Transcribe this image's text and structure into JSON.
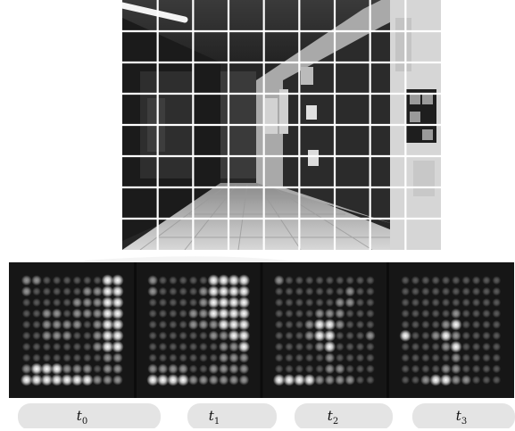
{
  "figure": {
    "time_labels": [
      {
        "symbol": "t",
        "subscript": "0"
      },
      {
        "symbol": "t",
        "subscript": "1"
      },
      {
        "symbol": "t",
        "subscript": "2"
      },
      {
        "symbol": "t",
        "subscript": "3"
      }
    ],
    "grid": {
      "rows": 8,
      "cols": 9
    },
    "colors": {
      "grid_line": "#ffffff",
      "heatmap_background": "#161616",
      "watermark": "#e6e6e6"
    }
  },
  "chart_data": {
    "type": "heatmap",
    "rows": 10,
    "cols": 10,
    "panels": [
      {
        "label": "t0",
        "values": [
          [
            2,
            2,
            1,
            1,
            1,
            1,
            1,
            1,
            3,
            3
          ],
          [
            2,
            1,
            1,
            1,
            1,
            1,
            2,
            2,
            3,
            3
          ],
          [
            1,
            1,
            1,
            1,
            1,
            2,
            2,
            2,
            3,
            3
          ],
          [
            1,
            1,
            2,
            2,
            1,
            2,
            2,
            2,
            3,
            3
          ],
          [
            1,
            1,
            2,
            2,
            2,
            2,
            1,
            2,
            3,
            3
          ],
          [
            1,
            1,
            2,
            2,
            2,
            1,
            1,
            2,
            3,
            3
          ],
          [
            1,
            1,
            1,
            1,
            1,
            1,
            1,
            2,
            3,
            3
          ],
          [
            1,
            1,
            1,
            1,
            1,
            1,
            1,
            1,
            2,
            2
          ],
          [
            2,
            3,
            3,
            3,
            2,
            2,
            2,
            1,
            2,
            2
          ],
          [
            3,
            3,
            3,
            3,
            3,
            3,
            3,
            2,
            2,
            2
          ]
        ]
      },
      {
        "label": "t1",
        "values": [
          [
            2,
            1,
            1,
            1,
            1,
            1,
            3,
            3,
            3,
            3
          ],
          [
            2,
            1,
            1,
            1,
            1,
            2,
            3,
            3,
            3,
            3
          ],
          [
            1,
            1,
            1,
            1,
            1,
            2,
            3,
            3,
            3,
            3
          ],
          [
            1,
            1,
            1,
            1,
            2,
            2,
            3,
            3,
            3,
            3
          ],
          [
            1,
            1,
            1,
            1,
            2,
            2,
            2,
            3,
            3,
            3
          ],
          [
            1,
            1,
            1,
            1,
            1,
            1,
            2,
            2,
            3,
            3
          ],
          [
            1,
            1,
            1,
            1,
            1,
            1,
            1,
            2,
            2,
            3
          ],
          [
            1,
            1,
            1,
            1,
            1,
            1,
            1,
            2,
            2,
            2
          ],
          [
            2,
            2,
            2,
            2,
            1,
            1,
            2,
            2,
            2,
            2
          ],
          [
            3,
            3,
            3,
            3,
            2,
            2,
            2,
            2,
            2,
            2
          ]
        ]
      },
      {
        "label": "t2",
        "values": [
          [
            2,
            1,
            1,
            1,
            1,
            1,
            1,
            1,
            1,
            1
          ],
          [
            1,
            1,
            1,
            1,
            1,
            1,
            1,
            2,
            1,
            1
          ],
          [
            1,
            1,
            1,
            1,
            1,
            1,
            2,
            2,
            1,
            1
          ],
          [
            1,
            1,
            1,
            1,
            2,
            2,
            2,
            1,
            1,
            1
          ],
          [
            1,
            1,
            1,
            2,
            3,
            3,
            2,
            1,
            1,
            1
          ],
          [
            1,
            1,
            1,
            2,
            3,
            3,
            1,
            1,
            1,
            2
          ],
          [
            1,
            1,
            1,
            1,
            2,
            3,
            1,
            1,
            1,
            1
          ],
          [
            1,
            1,
            1,
            1,
            1,
            2,
            1,
            1,
            1,
            1
          ],
          [
            1,
            1,
            1,
            1,
            1,
            2,
            2,
            1,
            1,
            1
          ],
          [
            3,
            3,
            3,
            3,
            2,
            2,
            2,
            2,
            1,
            1
          ]
        ]
      },
      {
        "label": "t3",
        "values": [
          [
            1,
            1,
            1,
            1,
            1,
            1,
            1,
            1,
            1,
            1
          ],
          [
            1,
            1,
            1,
            1,
            1,
            1,
            1,
            1,
            1,
            1
          ],
          [
            1,
            1,
            1,
            1,
            1,
            1,
            1,
            1,
            1,
            1
          ],
          [
            1,
            1,
            1,
            1,
            1,
            2,
            1,
            1,
            1,
            1
          ],
          [
            1,
            1,
            1,
            1,
            2,
            3,
            1,
            1,
            1,
            1
          ],
          [
            3,
            1,
            1,
            2,
            3,
            2,
            1,
            1,
            1,
            1
          ],
          [
            1,
            1,
            1,
            1,
            2,
            3,
            1,
            1,
            1,
            1
          ],
          [
            1,
            1,
            1,
            1,
            1,
            2,
            1,
            1,
            1,
            1
          ],
          [
            1,
            1,
            1,
            1,
            2,
            2,
            1,
            1,
            1,
            1
          ],
          [
            1,
            1,
            2,
            3,
            3,
            2,
            2,
            1,
            1,
            1
          ]
        ]
      }
    ]
  }
}
